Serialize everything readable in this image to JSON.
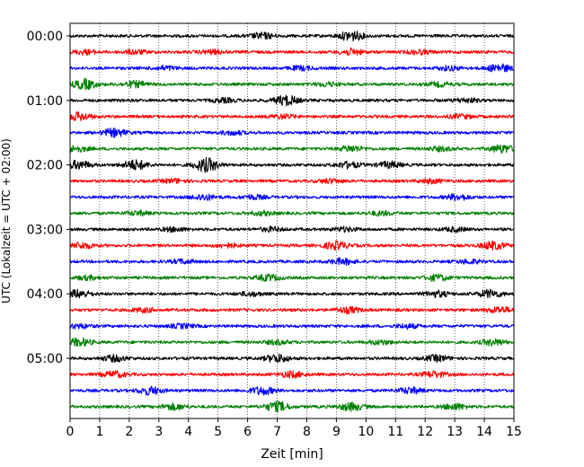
{
  "chart_data": {
    "type": "line",
    "title": "",
    "xlabel": "Zeit  [min]",
    "ylabel": "UTC (Lokalzeit = UTC + 02:00)",
    "xlim": [
      0,
      15
    ],
    "x_ticks": [
      "0",
      "1",
      "2",
      "3",
      "4",
      "5",
      "6",
      "7",
      "8",
      "9",
      "10",
      "11",
      "12",
      "13",
      "14",
      "15"
    ],
    "y_ticks": [
      {
        "label": "00:00",
        "trace_index": 0
      },
      {
        "label": "01:00",
        "trace_index": 4
      },
      {
        "label": "02:00",
        "trace_index": 8
      },
      {
        "label": "03:00",
        "trace_index": 12
      },
      {
        "label": "04:00",
        "trace_index": 16
      },
      {
        "label": "05:00",
        "trace_index": 20
      }
    ],
    "grid": "vertical dotted at each minute",
    "trace_count": 24,
    "trace_interval_min": 15,
    "color_cycle": [
      "#000000",
      "#ff0000",
      "#0000ff",
      "#008000"
    ],
    "traces": [
      {
        "start": "00:00",
        "events": [
          [
            6.5,
            3
          ],
          [
            9.5,
            5
          ]
        ]
      },
      {
        "start": "00:15",
        "events": [
          [
            0.5,
            2
          ],
          [
            2.2,
            2
          ],
          [
            4.8,
            2
          ],
          [
            9.5,
            3
          ],
          [
            11.8,
            2
          ]
        ]
      },
      {
        "start": "00:30",
        "events": [
          [
            3.2,
            2
          ],
          [
            7.8,
            2
          ],
          [
            12.8,
            2
          ],
          [
            14.5,
            4
          ]
        ]
      },
      {
        "start": "00:45",
        "events": [
          [
            0.5,
            5
          ],
          [
            2.2,
            3
          ],
          [
            8.7,
            2
          ],
          [
            12.5,
            2
          ]
        ]
      },
      {
        "start": "01:00",
        "events": [
          [
            5.2,
            2
          ],
          [
            7.3,
            5
          ],
          [
            13.4,
            2
          ]
        ]
      },
      {
        "start": "01:15",
        "events": [
          [
            0.3,
            4
          ],
          [
            7.2,
            2
          ],
          [
            13.2,
            2
          ]
        ]
      },
      {
        "start": "01:30",
        "events": [
          [
            1.5,
            4
          ],
          [
            5.5,
            2
          ]
        ]
      },
      {
        "start": "01:45",
        "events": [
          [
            0.2,
            3
          ],
          [
            9.5,
            3
          ],
          [
            12.5,
            2
          ],
          [
            14.6,
            4
          ]
        ]
      },
      {
        "start": "02:00",
        "events": [
          [
            0.3,
            4
          ],
          [
            2.2,
            5
          ],
          [
            4.6,
            7
          ],
          [
            9.4,
            3
          ],
          [
            10.8,
            3
          ]
        ]
      },
      {
        "start": "02:15",
        "events": [
          [
            3.5,
            2
          ],
          [
            8.8,
            2
          ],
          [
            12.2,
            2
          ]
        ]
      },
      {
        "start": "02:30",
        "events": [
          [
            4.5,
            3
          ],
          [
            6.2,
            2
          ],
          [
            13.1,
            3
          ]
        ]
      },
      {
        "start": "02:45",
        "events": [
          [
            2.3,
            2
          ],
          [
            6.5,
            2
          ],
          [
            10.5,
            2
          ]
        ]
      },
      {
        "start": "03:00",
        "events": [
          [
            3.5,
            2
          ],
          [
            6.8,
            2
          ],
          [
            9.3,
            2
          ],
          [
            13.0,
            2
          ]
        ]
      },
      {
        "start": "03:15",
        "events": [
          [
            0.4,
            3
          ],
          [
            5.3,
            2
          ],
          [
            9.0,
            4
          ],
          [
            14.3,
            4
          ]
        ]
      },
      {
        "start": "03:30",
        "events": [
          [
            3.8,
            2
          ],
          [
            9.2,
            3
          ],
          [
            13.5,
            2
          ]
        ]
      },
      {
        "start": "03:45",
        "events": [
          [
            0.6,
            2
          ],
          [
            6.7,
            3
          ],
          [
            12.4,
            3
          ]
        ]
      },
      {
        "start": "04:00",
        "events": [
          [
            0.3,
            4
          ],
          [
            6.1,
            2
          ],
          [
            12.4,
            3
          ],
          [
            14.2,
            4
          ]
        ]
      },
      {
        "start": "04:15",
        "events": [
          [
            2.5,
            2
          ],
          [
            9.4,
            3
          ],
          [
            14.5,
            3
          ]
        ]
      },
      {
        "start": "04:30",
        "events": [
          [
            0.3,
            2
          ],
          [
            3.8,
            2
          ],
          [
            11.4,
            2
          ]
        ]
      },
      {
        "start": "04:45",
        "events": [
          [
            0.3,
            4
          ],
          [
            7.0,
            2
          ],
          [
            10.5,
            2
          ],
          [
            14.3,
            3
          ]
        ]
      },
      {
        "start": "05:00",
        "events": [
          [
            1.5,
            3
          ],
          [
            7.0,
            4
          ],
          [
            12.4,
            3
          ]
        ]
      },
      {
        "start": "05:15",
        "events": [
          [
            1.5,
            3
          ],
          [
            7.5,
            3
          ],
          [
            12.3,
            3
          ]
        ]
      },
      {
        "start": "05:30",
        "events": [
          [
            2.7,
            4
          ],
          [
            6.5,
            4
          ],
          [
            11.5,
            3
          ]
        ]
      },
      {
        "start": "05:45",
        "events": [
          [
            3.5,
            3
          ],
          [
            7.0,
            5
          ],
          [
            9.5,
            4
          ],
          [
            13.0,
            3
          ]
        ]
      }
    ]
  }
}
